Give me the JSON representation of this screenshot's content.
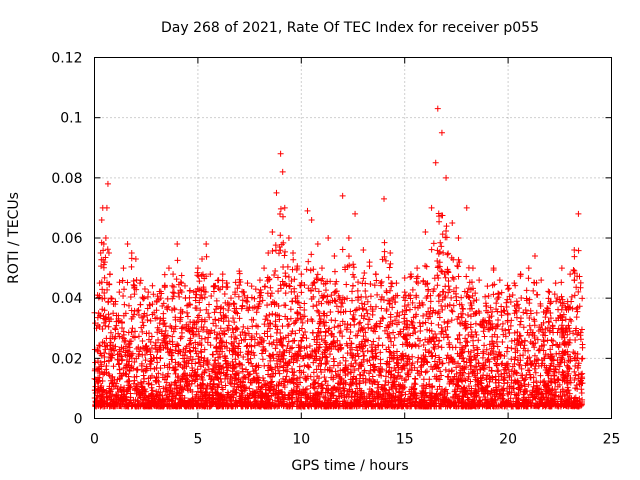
{
  "chart_data": {
    "type": "scatter",
    "title": "Day 268 of 2021, Rate Of TEC Index for receiver p055",
    "xlabel": "GPS time / hours",
    "ylabel": "ROTI / TECUs",
    "xlim": [
      0,
      25
    ],
    "ylim": [
      0,
      0.12
    ],
    "xticks": [
      0,
      5,
      10,
      15,
      20,
      25
    ],
    "yticks": [
      0,
      0.02,
      0.04,
      0.06,
      0.08,
      0.1,
      0.12
    ],
    "ytick_labels": [
      "0",
      "0.02",
      "0.04",
      "0.06",
      "0.08",
      "0.1",
      "0.12"
    ],
    "grid": true,
    "marker": "+",
    "color": "#ff0000",
    "x_extent": [
      0,
      23.6
    ],
    "series": [
      {
        "x": [
          0.1,
          0.15,
          0.2,
          0.25,
          0.3,
          0.35,
          0.4,
          0.45,
          0.5,
          0.55,
          0.6,
          0.65,
          0.7,
          0.75,
          0.8,
          0.9,
          1.0,
          1.2,
          1.4,
          1.6,
          1.8,
          2.0,
          2.2,
          2.4,
          2.6,
          2.8,
          3.0,
          3.2,
          3.4,
          3.6,
          3.8,
          4.0,
          4.2,
          4.4,
          4.6,
          4.8,
          5.0,
          5.2,
          5.4,
          5.6,
          5.8,
          6.0,
          6.2,
          6.4,
          6.6,
          6.8,
          7.0,
          7.2,
          7.4,
          7.6,
          7.8,
          8.0,
          8.2,
          8.4,
          8.6,
          8.8,
          9.0,
          9.1,
          9.2,
          9.4,
          9.6,
          9.8,
          10.0,
          10.3,
          10.5,
          10.8,
          11.0,
          11.3,
          11.6,
          12.0,
          12.3,
          12.6,
          13.0,
          13.3,
          13.6,
          14.0,
          14.3,
          14.6,
          15.0,
          15.3,
          15.6,
          16.0,
          16.3,
          16.5,
          16.6,
          16.8,
          17.0,
          17.3,
          17.6,
          18.0,
          18.3,
          18.6,
          19.0,
          19.3,
          19.6,
          20.0,
          20.3,
          20.6,
          21.0,
          21.3,
          21.6,
          22.0,
          22.3,
          22.6,
          23.0,
          23.2,
          23.4,
          23.6
        ],
        "y": [
          0.03,
          0.041,
          0.035,
          0.045,
          0.055,
          0.066,
          0.07,
          0.058,
          0.052,
          0.06,
          0.07,
          0.078,
          0.055,
          0.048,
          0.04,
          0.035,
          0.038,
          0.042,
          0.05,
          0.058,
          0.055,
          0.053,
          0.045,
          0.04,
          0.042,
          0.038,
          0.036,
          0.04,
          0.044,
          0.05,
          0.048,
          0.058,
          0.045,
          0.04,
          0.038,
          0.042,
          0.05,
          0.053,
          0.058,
          0.048,
          0.044,
          0.046,
          0.048,
          0.045,
          0.04,
          0.042,
          0.049,
          0.042,
          0.045,
          0.044,
          0.043,
          0.046,
          0.05,
          0.055,
          0.062,
          0.075,
          0.088,
          0.082,
          0.07,
          0.06,
          0.055,
          0.05,
          0.048,
          0.069,
          0.066,
          0.058,
          0.05,
          0.06,
          0.054,
          0.074,
          0.06,
          0.068,
          0.056,
          0.052,
          0.048,
          0.073,
          0.055,
          0.045,
          0.042,
          0.048,
          0.05,
          0.062,
          0.07,
          0.085,
          0.103,
          0.095,
          0.08,
          0.065,
          0.06,
          0.07,
          0.05,
          0.046,
          0.044,
          0.05,
          0.046,
          0.043,
          0.045,
          0.048,
          0.05,
          0.054,
          0.046,
          0.042,
          0.045,
          0.05,
          0.048,
          0.056,
          0.068,
          0.02
        ]
      }
    ]
  }
}
